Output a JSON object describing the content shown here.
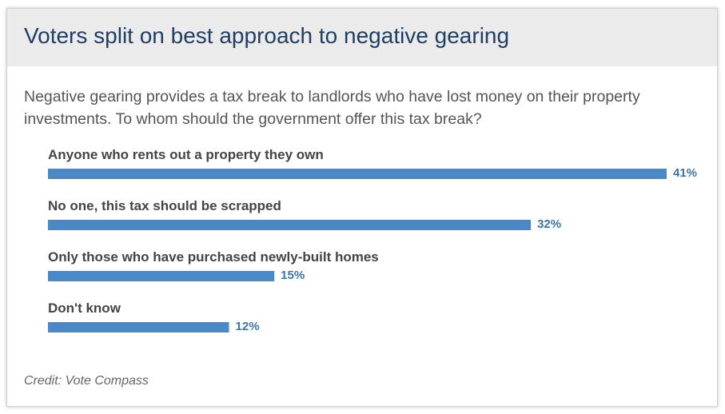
{
  "title": "Voters split on best approach to negative gearing",
  "question": "Negative gearing provides a tax break to landlords who have lost money on their property investments. To whom should the government offer this tax break?",
  "credit": "Credit: Vote Compass",
  "colors": {
    "bar": "#4a89c8",
    "value_label": "#3a75a8",
    "title": "#1f3f66",
    "header_bg": "#ebebeb"
  },
  "chart_data": {
    "type": "bar",
    "orientation": "horizontal",
    "categories": [
      "Anyone who rents out a property they own",
      "No one, this tax should be scrapped",
      "Only those who have purchased newly-built homes",
      "Don't know"
    ],
    "values": [
      41,
      32,
      15,
      12
    ],
    "value_labels": [
      "41%",
      "32%",
      "15%",
      "12%"
    ],
    "unit": "%",
    "xlim": [
      0,
      41
    ],
    "grid": false,
    "legend": "none"
  }
}
